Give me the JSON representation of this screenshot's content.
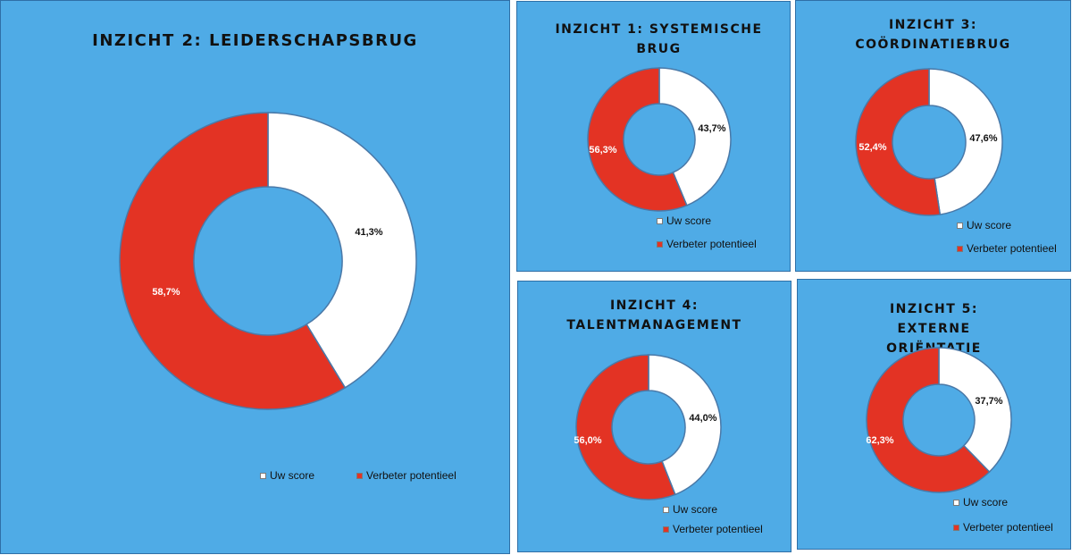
{
  "colors": {
    "score": "#ffffff",
    "potential": "#e33324",
    "panel_bg": "#4fabe6",
    "stroke": "#4a79a8"
  },
  "chart_data": [
    {
      "type": "pie",
      "title": "INZICHT 2: LEIDERSCHAPSBRUG",
      "categories": [
        "Uw score",
        "Verbeter potentieel"
      ],
      "values": [
        41.3,
        58.7
      ],
      "value_labels": [
        "41,3%",
        "58,7%"
      ],
      "hole": true,
      "legend": "bottom"
    },
    {
      "type": "pie",
      "title": "INZICHT 1: SYSTEMISCHE BRUG",
      "categories": [
        "Uw score",
        "Verbeter potentieel"
      ],
      "values": [
        43.7,
        56.3
      ],
      "value_labels": [
        "43,7%",
        "56,3%"
      ],
      "hole": true,
      "legend": "bottom"
    },
    {
      "type": "pie",
      "title": "INZICHT 3: COÖRDINATIEBRUG",
      "categories": [
        "Uw score",
        "Verbeter potentieel"
      ],
      "values": [
        47.6,
        52.4
      ],
      "value_labels": [
        "47,6%",
        "52,4%"
      ],
      "hole": true,
      "legend": "bottom-right"
    },
    {
      "type": "pie",
      "title": "INZICHT 4: TALENTMANAGEMENT",
      "categories": [
        "Uw score",
        "Verbeter potentieel"
      ],
      "values": [
        44.0,
        56.0
      ],
      "value_labels": [
        "44,0%",
        "56,0%"
      ],
      "hole": true,
      "legend": "bottom-right"
    },
    {
      "type": "pie",
      "title": "INZICHT 5: EXTERNE ORIËNTATIE",
      "categories": [
        "Uw score",
        "Verbeter potentieel"
      ],
      "values": [
        37.7,
        62.3
      ],
      "value_labels": [
        "37,7%",
        "62,3%"
      ],
      "hole": true,
      "legend": "bottom-right"
    }
  ]
}
